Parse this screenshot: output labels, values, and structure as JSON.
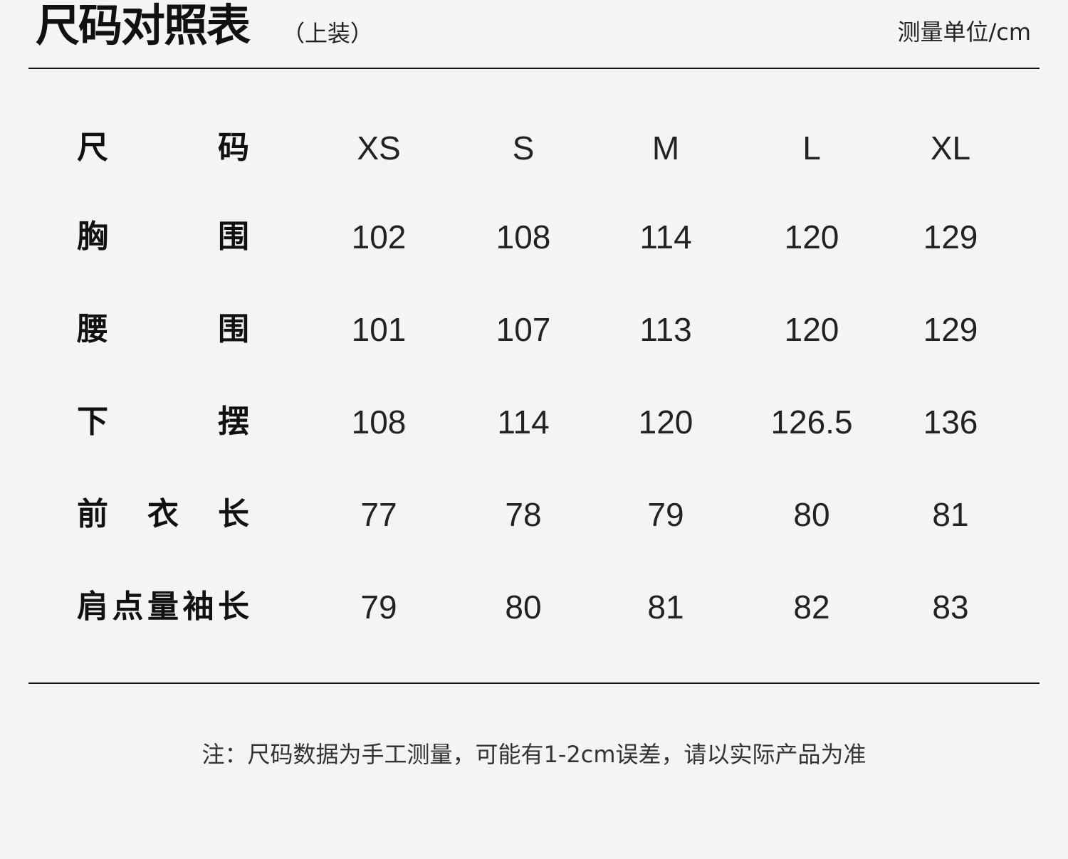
{
  "header": {
    "title": "尺码对照表",
    "subtitle": "（上装）",
    "unit": "测量单位/cm"
  },
  "table": {
    "header": {
      "label": "尺码",
      "sizes": [
        "XS",
        "S",
        "M",
        "L",
        "XL"
      ]
    },
    "rows": [
      {
        "label": "胸围",
        "values": [
          "102",
          "108",
          "114",
          "120",
          "129"
        ]
      },
      {
        "label": "腰围",
        "values": [
          "101",
          "107",
          "113",
          "120",
          "129"
        ]
      },
      {
        "label": "下摆",
        "values": [
          "108",
          "114",
          "120",
          "126.5",
          "136"
        ]
      },
      {
        "label": "前衣长",
        "values": [
          "77",
          "78",
          "79",
          "80",
          "81"
        ]
      },
      {
        "label": "肩点量袖长",
        "values": [
          "79",
          "80",
          "81",
          "82",
          "83"
        ]
      }
    ]
  },
  "footer": {
    "note": "注：尺码数据为手工测量，可能有1-2cm误差，请以实际产品为准"
  }
}
